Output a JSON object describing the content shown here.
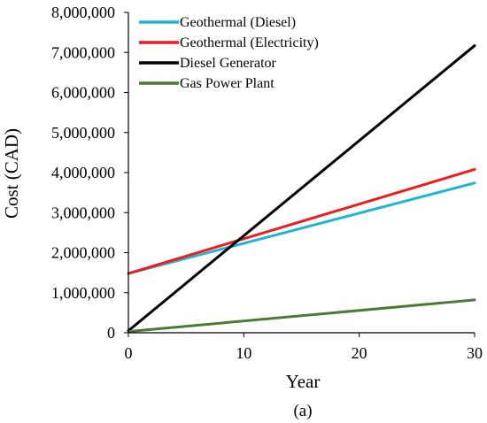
{
  "chart_data": {
    "type": "line",
    "caption": "(a)",
    "xlabel": "Year",
    "ylabel": "Cost (CAD)",
    "xlim": [
      0,
      30
    ],
    "ylim": [
      0,
      8000000
    ],
    "xticks": [
      0,
      10,
      20,
      30
    ],
    "xtick_labels": [
      "0",
      "10",
      "20",
      "30"
    ],
    "yticks": [
      0,
      1000000,
      2000000,
      3000000,
      4000000,
      5000000,
      6000000,
      7000000,
      8000000
    ],
    "ytick_labels": [
      "0",
      "1,000,000",
      "2,000,000",
      "3,000,000",
      "4,000,000",
      "5,000,000",
      "6,000,000",
      "7,000,000",
      "8,000,000"
    ],
    "grid": false,
    "legend_position": "top-left",
    "series": [
      {
        "name": "Geothermal (Diesel)",
        "color": "#1fb6d6",
        "x": [
          0,
          30
        ],
        "y": [
          1480000,
          3740000
        ]
      },
      {
        "name": "Geothermal (Electricity)",
        "color": "#ee1c1c",
        "x": [
          0,
          30
        ],
        "y": [
          1480000,
          4080000
        ]
      },
      {
        "name": "Diesel Generator",
        "color": "#000000",
        "x": [
          0,
          30
        ],
        "y": [
          50000,
          7170000
        ]
      },
      {
        "name": "Gas Power Plant",
        "color": "#4a7a35",
        "x": [
          0,
          30
        ],
        "y": [
          30000,
          820000
        ]
      }
    ]
  }
}
